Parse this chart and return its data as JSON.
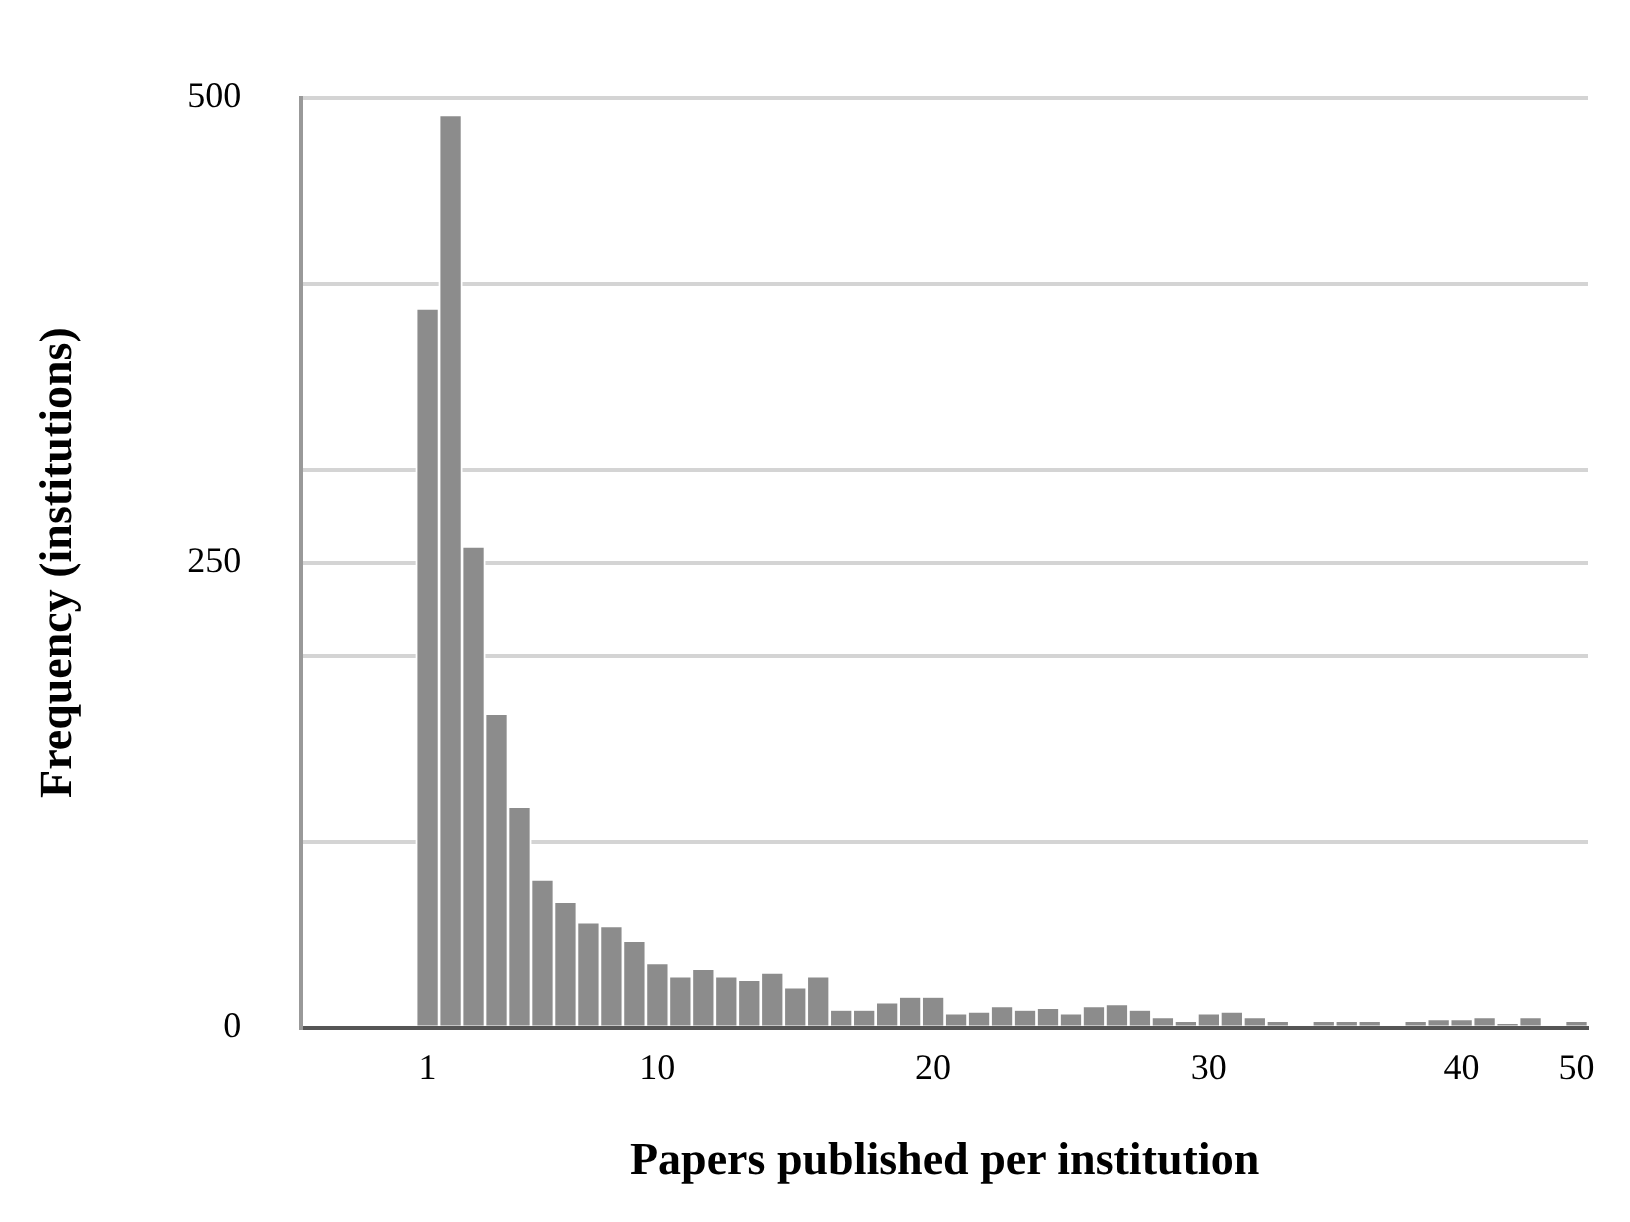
{
  "chart_data": {
    "type": "bar",
    "xlabel": "Papers published per institution",
    "ylabel": "Frequency (institutions)",
    "categories": [
      null,
      null,
      null,
      null,
      null,
      "1",
      null,
      null,
      null,
      null,
      null,
      null,
      null,
      null,
      null,
      "10",
      null,
      null,
      null,
      null,
      null,
      null,
      null,
      null,
      null,
      null,
      null,
      "20",
      null,
      null,
      null,
      null,
      null,
      null,
      null,
      null,
      null,
      null,
      null,
      "30",
      null,
      null,
      null,
      null,
      null,
      null,
      null,
      null,
      null,
      null,
      "40",
      null,
      null,
      null,
      null,
      "50"
    ],
    "values": [
      null,
      null,
      null,
      null,
      null,
      386,
      490,
      258,
      168,
      118,
      79,
      67,
      56,
      54,
      46,
      34,
      27,
      31,
      27,
      25,
      29,
      21,
      27,
      9,
      9,
      13,
      16,
      16,
      7,
      8,
      11,
      9,
      10,
      7,
      11,
      12,
      9,
      5,
      3,
      7,
      8,
      5,
      3,
      0,
      3,
      3,
      3,
      null,
      3,
      4,
      4,
      5,
      2,
      5,
      0,
      3
    ],
    "color": "#8c8c8c",
    "ylim": [
      0,
      500
    ],
    "yticks": [
      0,
      {
        "value": 100,
        "label": null
      },
      {
        "value": 200,
        "label": null
      },
      250,
      {
        "value": 300,
        "label": null
      },
      {
        "value": 400,
        "label": null
      },
      500
    ],
    "grid": "y"
  }
}
